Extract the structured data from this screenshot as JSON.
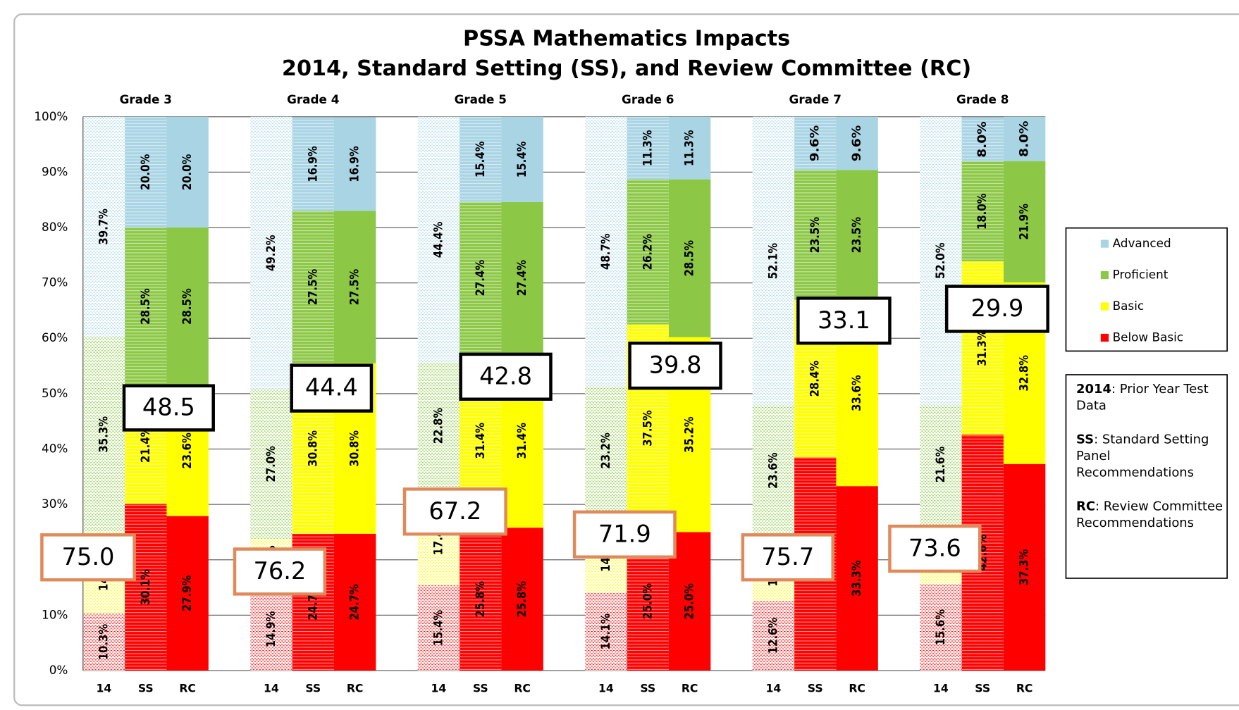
{
  "chart_data": {
    "type": "stacked_bar",
    "title": "PSSA Mathematics Impacts",
    "subtitle": "2014, Standard Setting (SS), and Review Committee (RC)",
    "groups": [
      "Grade 3",
      "Grade 4",
      "Grade 5",
      "Grade 6",
      "Grade 7",
      "Grade 8"
    ],
    "categories": [
      "14",
      "SS",
      "RC",
      "14",
      "SS",
      "RC",
      "14",
      "SS",
      "RC",
      "14",
      "SS",
      "RC",
      "14",
      "SS",
      "RC",
      "14",
      "SS",
      "RC"
    ],
    "bar_styles": [
      "dotted",
      "striped",
      "solid"
    ],
    "series": [
      {
        "name": "Advanced",
        "color": "#a9d4e4",
        "values": [
          39.7,
          20.0,
          20.0,
          49.2,
          16.9,
          16.9,
          44.4,
          15.4,
          15.4,
          48.7,
          11.3,
          11.3,
          52.1,
          9.6,
          9.6,
          52.0,
          8.0,
          8.0
        ],
        "value_labels": [
          "39.7%",
          "20.0%",
          "20.0%",
          "49.2%",
          "16.9%",
          "16.9%",
          "44.4%",
          "15.4%",
          "15.4%",
          "48.7%",
          "11.3%",
          "11.3%",
          "52.1%",
          "9.6%",
          "9.6%",
          "52.0%",
          "8.0%",
          "8.0%"
        ]
      },
      {
        "name": "Proficient",
        "color": "#8cc846",
        "values": [
          35.3,
          28.5,
          28.5,
          27.0,
          27.5,
          27.5,
          22.8,
          27.4,
          27.4,
          23.2,
          26.2,
          28.5,
          23.6,
          23.5,
          23.5,
          21.6,
          18.0,
          21.9
        ],
        "value_labels": [
          "35.3%",
          "28.5%",
          "28.5%",
          "27.0%",
          "27.5%",
          "27.5%",
          "22.8%",
          "27.4%",
          "27.4%",
          "23.2%",
          "26.2%",
          "28.5%",
          "23.6%",
          "23.5%",
          "23.5%",
          "21.6%",
          "18.0%",
          "21.9%"
        ]
      },
      {
        "name": "Basic",
        "color": "#ffff00",
        "values": [
          14.7,
          21.4,
          23.6,
          8.9,
          30.8,
          30.8,
          17.4,
          31.4,
          31.4,
          14.0,
          37.5,
          35.2,
          11.7,
          28.4,
          33.6,
          10.8,
          31.3,
          32.8
        ],
        "value_labels": [
          "14.7%",
          "21.4%",
          "23.6%",
          "8.9%",
          "30.8%",
          "30.8%",
          "17.4%",
          "31.4%",
          "31.4%",
          "14.0%",
          "37.5%",
          "35.2%",
          "11.7%",
          "28.4%",
          "33.6%",
          "10.8%",
          "31.3%",
          "32.8%"
        ]
      },
      {
        "name": "Below Basic",
        "color": "#ff0000",
        "values": [
          10.3,
          30.1,
          27.9,
          14.9,
          24.7,
          24.7,
          15.4,
          25.8,
          25.8,
          14.1,
          25.0,
          25.0,
          12.6,
          38.5,
          33.3,
          15.6,
          42.6,
          37.3
        ],
        "value_labels": [
          "10.3%",
          "30.1%",
          "27.9%",
          "14.9%",
          "24.7%",
          "24.7%",
          "15.4%",
          "25.8%",
          "25.8%",
          "14.1%",
          "25.0%",
          "25.0%",
          "12.6%",
          "38.5%",
          "33.3%",
          "15.6%",
          "42.6%",
          "37.3%"
        ]
      }
    ],
    "ylim": [
      0,
      100
    ],
    "yticks": [
      {
        "value": 0,
        "label": "0%"
      },
      {
        "value": 10,
        "label": "10%"
      },
      {
        "value": 20,
        "label": "20%"
      },
      {
        "value": 30,
        "label": "30%"
      },
      {
        "value": 40,
        "label": "40%"
      },
      {
        "value": 50,
        "label": "50%"
      },
      {
        "value": 60,
        "label": "60%"
      },
      {
        "value": 70,
        "label": "70%"
      },
      {
        "value": 80,
        "label": "80%"
      },
      {
        "value": 90,
        "label": "90%"
      },
      {
        "value": 100,
        "label": "100%"
      }
    ],
    "grid": true,
    "legend": "right",
    "annotations": [
      {
        "text": "48.5",
        "border": "#000000"
      },
      {
        "text": "44.4",
        "border": "#000000"
      },
      {
        "text": "42.8",
        "border": "#000000"
      },
      {
        "text": "39.8",
        "border": "#000000"
      },
      {
        "text": "33.1",
        "border": "#000000"
      },
      {
        "text": "29.9",
        "border": "#000000"
      },
      {
        "text": "75.0",
        "border": "#e08a5c"
      },
      {
        "text": "76.2",
        "border": "#e08a5c"
      },
      {
        "text": "67.2",
        "border": "#e08a5c"
      },
      {
        "text": "71.9",
        "border": "#e08a5c"
      },
      {
        "text": "75.7",
        "border": "#e08a5c"
      },
      {
        "text": "73.6",
        "border": "#e08a5c"
      }
    ],
    "notes": [
      {
        "term": "2014",
        "text": ": Prior Year Test Data"
      },
      {
        "term": "SS",
        "text": ": Standard Setting Panel Recommendations"
      },
      {
        "term": "RC",
        "text": ": Review Committee Recommendations"
      }
    ]
  }
}
